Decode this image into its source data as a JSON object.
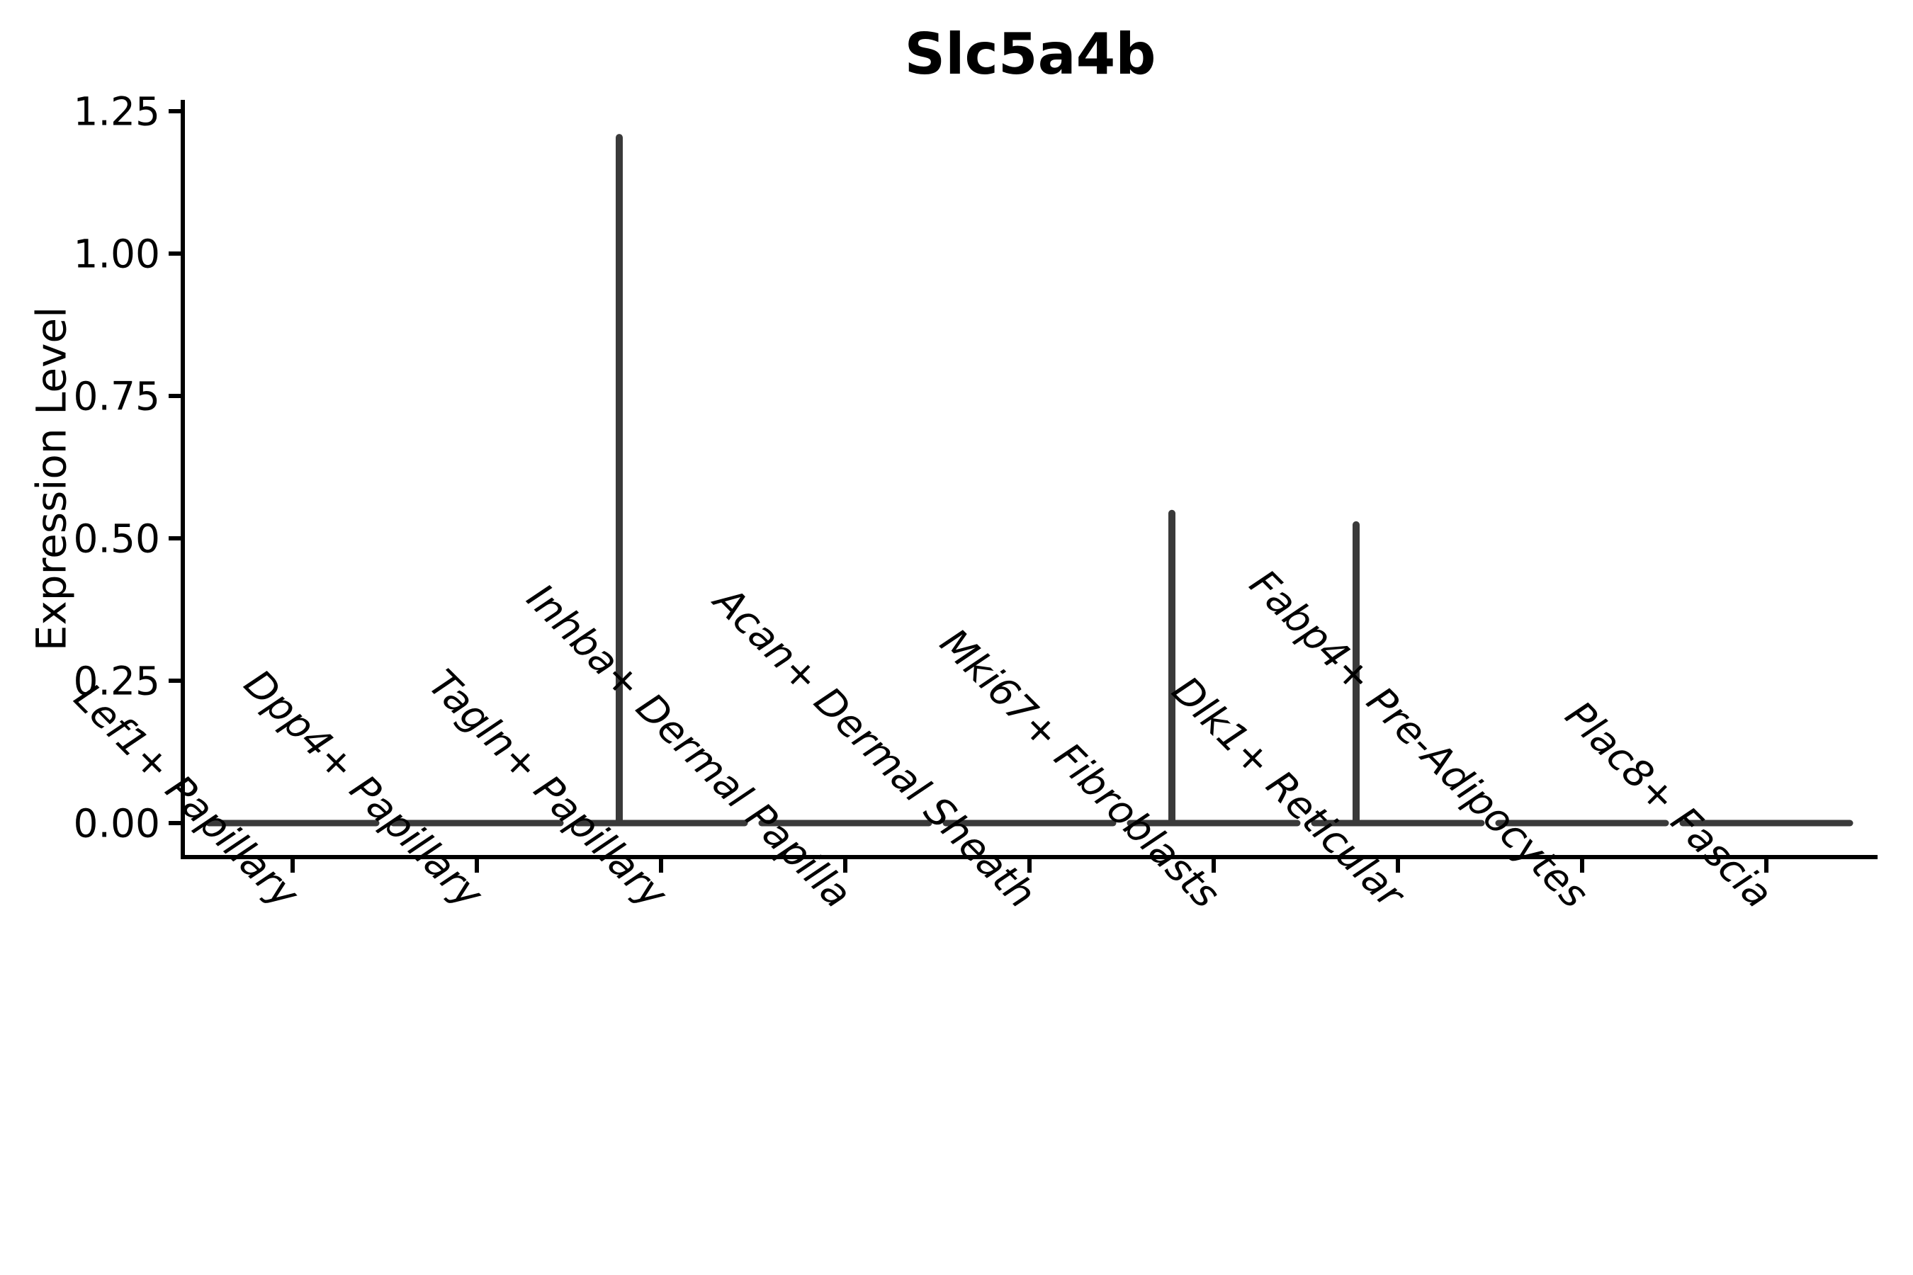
{
  "figure": {
    "title": "Slc5a4b",
    "background_color": "#ffffff"
  },
  "chart_data": {
    "type": "violin",
    "title": "Slc5a4b",
    "xlabel": "",
    "ylabel": "Expression Level",
    "categories": [
      "Lef1+ Papillary",
      "Dpp4+ Papillary",
      "Tagln+ Papillary",
      "Inhba+ Dermal Papilla",
      "Acan+ Dermal Sheath",
      "Mki67+ Fibroblasts",
      "Dlk1+ Reticular",
      "Fabp4+ Pre-Adipocytes",
      "Plac8+ Fascia"
    ],
    "violins": [
      {
        "category": "Lef1+ Papillary",
        "bulk_value": 0.0,
        "max_value": 0.0
      },
      {
        "category": "Dpp4+ Papillary",
        "bulk_value": 0.0,
        "max_value": 0.0
      },
      {
        "category": "Tagln+ Papillary",
        "bulk_value": 0.0,
        "max_value": 1.21
      },
      {
        "category": "Inhba+ Dermal Papilla",
        "bulk_value": 0.0,
        "max_value": 0.0
      },
      {
        "category": "Acan+ Dermal Sheath",
        "bulk_value": 0.0,
        "max_value": 0.0
      },
      {
        "category": "Mki67+ Fibroblasts",
        "bulk_value": 0.0,
        "max_value": 0.55
      },
      {
        "category": "Dlk1+ Reticular",
        "bulk_value": 0.0,
        "max_value": 0.53
      },
      {
        "category": "Fabp4+ Pre-Adipocytes",
        "bulk_value": 0.0,
        "max_value": 0.0
      },
      {
        "category": "Plac8+ Fascia",
        "bulk_value": 0.0,
        "max_value": 0.0
      }
    ],
    "description": "Nearly all cells have expression 0 in every cluster (flat violins at y=0); rare positive cells create thin density spikes up to the max value in Tagln+ Papillary, Mki67+ Fibroblasts and Dlk1+ Reticular.",
    "y_ticks": [
      {
        "value": 0.0,
        "label": "0.00"
      },
      {
        "value": 0.25,
        "label": "0.25"
      },
      {
        "value": 0.5,
        "label": "0.50"
      },
      {
        "value": 0.75,
        "label": "0.75"
      },
      {
        "value": 1.0,
        "label": "1.00"
      },
      {
        "value": 1.25,
        "label": "1.25"
      }
    ],
    "ylim": [
      -0.06,
      1.27
    ],
    "grid": false,
    "legend": "none",
    "x_tick_label_rotation_deg": 45,
    "x_tick_label_style": "italic",
    "spike_offset_fraction_of_spacing": -0.227,
    "colors": {
      "violin_line": "#3a3a3a",
      "axis": "#000000",
      "text": "#000000",
      "background": "#ffffff"
    }
  }
}
